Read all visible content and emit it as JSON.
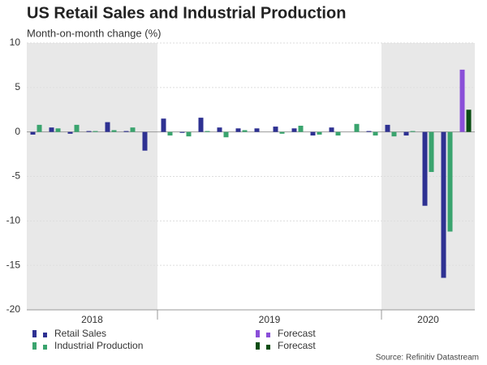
{
  "chart_data": {
    "type": "bar",
    "title": "US Retail Sales and Industrial Production",
    "subtitle": "Month-on-month change (%)",
    "source": "Source: Refinitiv Datastream",
    "categories": [
      null,
      null,
      null,
      null,
      null,
      null,
      null,
      null,
      null,
      null,
      null,
      null,
      null,
      null,
      null,
      null,
      null,
      null,
      null,
      null,
      null,
      null,
      null,
      null
    ],
    "year_groups": [
      {
        "label": "2018",
        "count": 7,
        "shaded": true
      },
      {
        "label": "2019",
        "count": 12,
        "shaded": false
      },
      {
        "label": "2020",
        "count": 5,
        "shaded": true
      }
    ],
    "series": [
      {
        "name": "Retail Sales",
        "color": "#2e3192",
        "values": [
          -0.3,
          0.5,
          -0.2,
          0.1,
          1.1,
          0.1,
          -2.1,
          1.5,
          -0.1,
          1.6,
          0.5,
          0.4,
          0.4,
          0.6,
          0.4,
          -0.4,
          0.5,
          0,
          0.1,
          0.8,
          -0.4,
          -8.3,
          -16.4,
          null
        ]
      },
      {
        "name": "Industrial Production",
        "color": "#3aa46e",
        "values": [
          0.8,
          0.4,
          0.8,
          0.1,
          0.2,
          0.5,
          0,
          -0.4,
          -0.5,
          0.1,
          -0.6,
          0.2,
          0,
          -0.2,
          0.7,
          -0.3,
          -0.4,
          0.9,
          -0.4,
          -0.5,
          0.1,
          -4.5,
          -11.2,
          null
        ]
      },
      {
        "name": "Forecast",
        "color": "#8a4fd8",
        "values": [
          null,
          null,
          null,
          null,
          null,
          null,
          null,
          null,
          null,
          null,
          null,
          null,
          null,
          null,
          null,
          null,
          null,
          null,
          null,
          null,
          null,
          null,
          null,
          7.0
        ]
      },
      {
        "name": "Forecast",
        "color": "#0a4d12",
        "values": [
          null,
          null,
          null,
          null,
          null,
          null,
          null,
          null,
          null,
          null,
          null,
          null,
          null,
          null,
          null,
          null,
          null,
          null,
          null,
          null,
          null,
          null,
          null,
          2.5
        ]
      }
    ],
    "ylim": [
      -20,
      10
    ],
    "yticks": [
      -20,
      -15,
      -10,
      -5,
      0,
      5,
      10
    ],
    "grid": true
  }
}
